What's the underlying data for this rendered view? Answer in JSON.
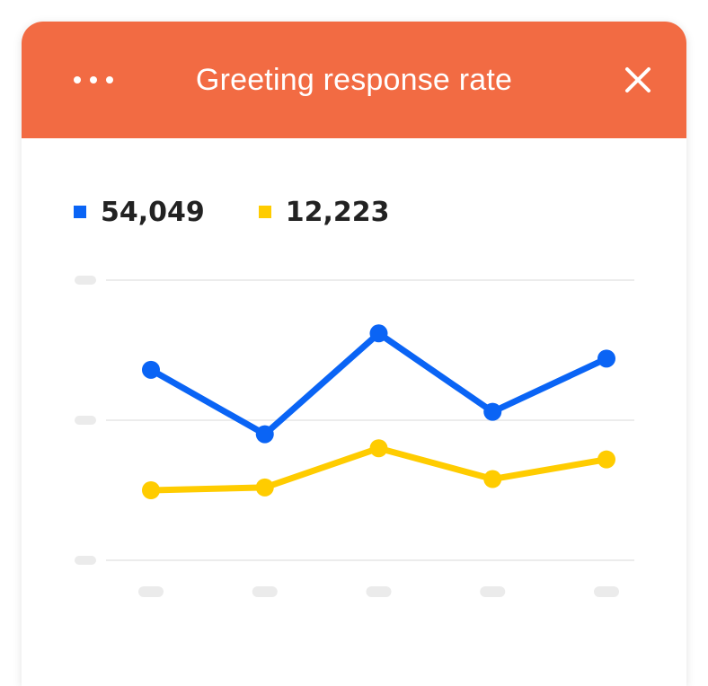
{
  "header": {
    "title": "Greeting response rate",
    "background": "#F26B43"
  },
  "legend": [
    {
      "value": "54,049",
      "color": "#0A64F5"
    },
    {
      "value": "12,223",
      "color": "#FFCC00"
    }
  ],
  "chart_data": {
    "type": "line",
    "xlabel": "",
    "ylabel": "",
    "ylim": [
      0,
      100
    ],
    "x_ticks": 5,
    "y_ticks": 3,
    "grid": true,
    "series": [
      {
        "color": "#0A64F5",
        "values": [
          68,
          45,
          81,
          53,
          72
        ]
      },
      {
        "color": "#FFCC00",
        "values": [
          25,
          26,
          40,
          29,
          36
        ]
      }
    ]
  }
}
